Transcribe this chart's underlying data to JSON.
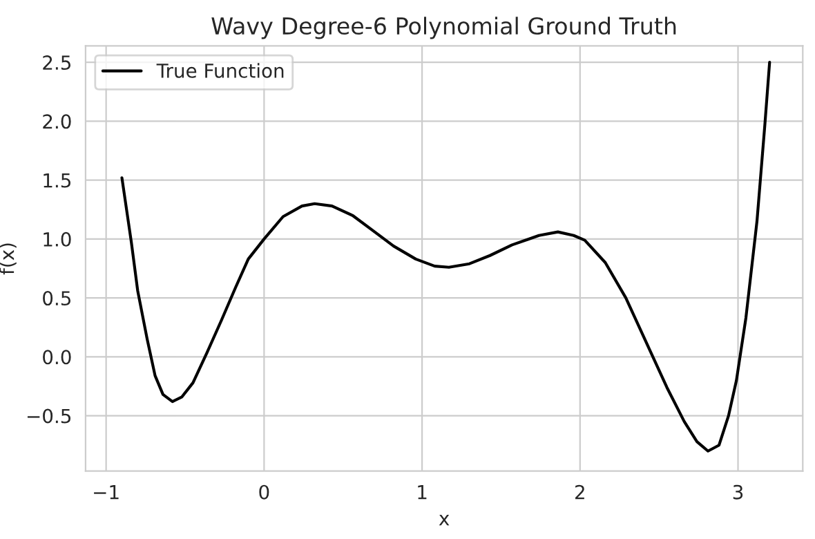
{
  "chart_data": {
    "type": "line",
    "title": "Wavy Degree-6 Polynomial Ground Truth",
    "xlabel": "x",
    "ylabel": "f(x)",
    "x": [
      -0.9,
      -0.84,
      -0.8,
      -0.74,
      -0.69,
      -0.64,
      -0.58,
      -0.52,
      -0.45,
      -0.36,
      -0.27,
      -0.18,
      -0.1,
      0,
      0.12,
      0.24,
      0.32,
      0.43,
      0.56,
      0.69,
      0.82,
      0.96,
      1.08,
      1.17,
      1.3,
      1.43,
      1.57,
      1.74,
      1.86,
      1.96,
      2.03,
      2.16,
      2.29,
      2.42,
      2.55,
      2.66,
      2.74,
      2.81,
      2.88,
      2.94,
      2.99,
      3.05,
      3.12,
      3.17,
      3.2
    ],
    "series": [
      {
        "name": "True Function",
        "color": "#000000",
        "values": [
          1.52,
          0.97,
          0.56,
          0.15,
          -0.16,
          -0.32,
          -0.38,
          -0.34,
          -0.22,
          0.04,
          0.31,
          0.59,
          0.83,
          1.0,
          1.19,
          1.28,
          1.3,
          1.28,
          1.2,
          1.07,
          0.94,
          0.83,
          0.77,
          0.76,
          0.79,
          0.86,
          0.95,
          1.03,
          1.06,
          1.03,
          0.99,
          0.8,
          0.5,
          0.12,
          -0.26,
          -0.55,
          -0.72,
          -0.8,
          -0.75,
          -0.5,
          -0.2,
          0.33,
          1.15,
          1.97,
          2.5
        ]
      }
    ],
    "xlim": [
      -1.13,
      3.41
    ],
    "ylim": [
      -0.97,
      2.64
    ],
    "xticks": [
      {
        "value": -1,
        "label": "−1"
      },
      0,
      1,
      2,
      3
    ],
    "yticks": [
      {
        "value": -0.5,
        "label": "−0.5"
      },
      {
        "value": 0,
        "label": "0.0"
      },
      0.5,
      {
        "value": 1,
        "label": "1.0"
      },
      1.5,
      {
        "value": 2,
        "label": "2.0"
      },
      2.5
    ],
    "grid": true,
    "legend": "top left",
    "marker": "none",
    "line_style": "solid"
  }
}
